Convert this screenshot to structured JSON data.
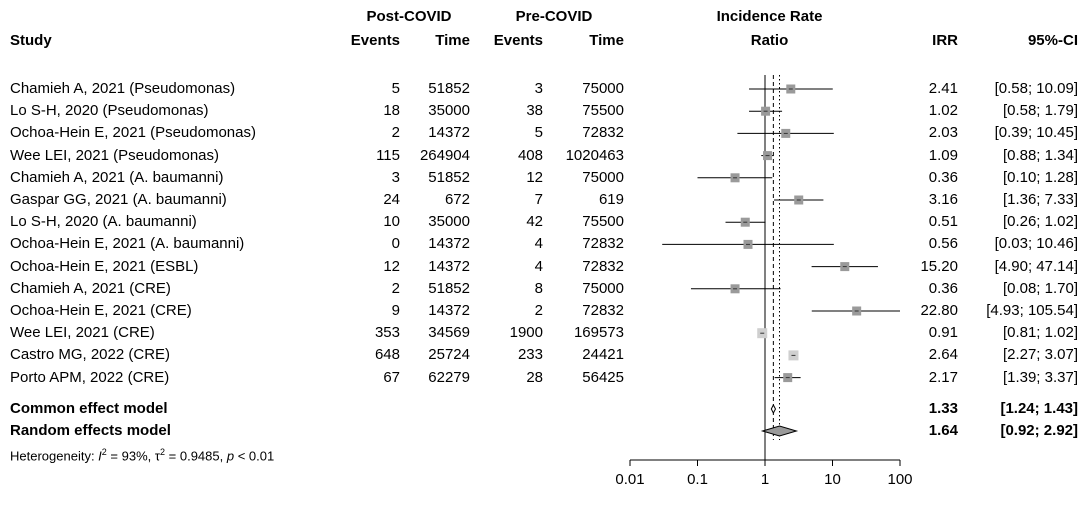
{
  "header": {
    "study": "Study",
    "post_group": "Post-COVID",
    "pre_group": "Pre-COVID",
    "events": "Events",
    "time": "Time",
    "irr_title_1": "Incidence Rate",
    "irr_title_2": "Ratio",
    "irr": "IRR",
    "ci": "95%-CI"
  },
  "studies": [
    {
      "study": "Chamieh A, 2021 (Pseudomonas)",
      "post_events": "5",
      "post_time": "51852",
      "pre_events": "3",
      "pre_time": "75000",
      "irr": "2.41",
      "ci": "[0.58; 10.09]"
    },
    {
      "study": "Lo S-H, 2020 (Pseudomonas)",
      "post_events": "18",
      "post_time": "35000",
      "pre_events": "38",
      "pre_time": "75500",
      "irr": "1.02",
      "ci": "[0.58; 1.79]"
    },
    {
      "study": "Ochoa-Hein E, 2021 (Pseudomonas)",
      "post_events": "2",
      "post_time": "14372",
      "pre_events": "5",
      "pre_time": "72832",
      "irr": "2.03",
      "ci": "[0.39; 10.45]"
    },
    {
      "study": "Wee LEI, 2021 (Pseudomonas)",
      "post_events": "115",
      "post_time": "264904",
      "pre_events": "408",
      "pre_time": "1020463",
      "irr": "1.09",
      "ci": "[0.88; 1.34]"
    },
    {
      "study": "Chamieh A, 2021 (A. baumanni)",
      "post_events": "3",
      "post_time": "51852",
      "pre_events": "12",
      "pre_time": "75000",
      "irr": "0.36",
      "ci": "[0.10; 1.28]"
    },
    {
      "study": "Gaspar GG, 2021 (A. baumanni)",
      "post_events": "24",
      "post_time": "672",
      "pre_events": "7",
      "pre_time": "619",
      "irr": "3.16",
      "ci": "[1.36; 7.33]"
    },
    {
      "study": "Lo S-H, 2020 (A. baumanni)",
      "post_events": "10",
      "post_time": "35000",
      "pre_events": "42",
      "pre_time": "75500",
      "irr": "0.51",
      "ci": "[0.26; 1.02]"
    },
    {
      "study": "Ochoa-Hein E, 2021 (A. baumanni)",
      "post_events": "0",
      "post_time": "14372",
      "pre_events": "4",
      "pre_time": "72832",
      "irr": "0.56",
      "ci": "[0.03; 10.46]"
    },
    {
      "study": "Ochoa-Hein E, 2021 (ESBL)",
      "post_events": "12",
      "post_time": "14372",
      "pre_events": "4",
      "pre_time": "72832",
      "irr": "15.20",
      "ci": "[4.90; 47.14]"
    },
    {
      "study": "Chamieh A, 2021 (CRE)",
      "post_events": "2",
      "post_time": "51852",
      "pre_events": "8",
      "pre_time": "75000",
      "irr": "0.36",
      "ci": "[0.08; 1.70]"
    },
    {
      "study": "Ochoa-Hein E, 2021 (CRE)",
      "post_events": "9",
      "post_time": "14372",
      "pre_events": "2",
      "pre_time": "72832",
      "irr": "22.80",
      "ci": "[4.93; 105.54]"
    },
    {
      "study": "Wee LEI, 2021 (CRE)",
      "post_events": "353",
      "post_time": "34569",
      "pre_events": "1900",
      "pre_time": "169573",
      "irr": "0.91",
      "ci": "[0.81; 1.02]"
    },
    {
      "study": "Castro MG, 2022 (CRE)",
      "post_events": "648",
      "post_time": "25724",
      "pre_events": "233",
      "pre_time": "24421",
      "irr": "2.64",
      "ci": "[2.27; 3.07]"
    },
    {
      "study": "Porto APM, 2022 (CRE)",
      "post_events": "67",
      "post_time": "62279",
      "pre_events": "28",
      "pre_time": "56425",
      "irr": "2.17",
      "ci": "[1.39; 3.37]"
    }
  ],
  "models": {
    "common": {
      "label": "Common effect model",
      "irr": "1.33",
      "ci": "[1.24; 1.43]"
    },
    "random": {
      "label": "Random effects model",
      "irr": "1.64",
      "ci": "[0.92; 2.92]"
    }
  },
  "heterogeneity": {
    "prefix": "Heterogeneity: ",
    "i2_symbol": "I",
    "i2_value": " = 93%, ",
    "tau2_symbol": "τ",
    "tau2_value": " = 0.9485, ",
    "p_symbol": "p",
    "p_value": " < 0.01"
  },
  "chart_data": {
    "type": "forest",
    "scale": "log",
    "xlim": [
      0.01,
      100
    ],
    "ticks": [
      0.01,
      0.1,
      1,
      10,
      100
    ],
    "tick_labels": [
      "0.01",
      "0.1",
      "1",
      "10",
      "100"
    ],
    "null_line": 1,
    "points": [
      {
        "irr": 2.41,
        "lower": 0.58,
        "upper": 10.09
      },
      {
        "irr": 1.02,
        "lower": 0.58,
        "upper": 1.79
      },
      {
        "irr": 2.03,
        "lower": 0.39,
        "upper": 10.45
      },
      {
        "irr": 1.09,
        "lower": 0.88,
        "upper": 1.34
      },
      {
        "irr": 0.36,
        "lower": 0.1,
        "upper": 1.28
      },
      {
        "irr": 3.16,
        "lower": 1.36,
        "upper": 7.33
      },
      {
        "irr": 0.51,
        "lower": 0.26,
        "upper": 1.02
      },
      {
        "irr": 0.56,
        "lower": 0.03,
        "upper": 10.46
      },
      {
        "irr": 15.2,
        "lower": 4.9,
        "upper": 47.14
      },
      {
        "irr": 0.36,
        "lower": 0.08,
        "upper": 1.7
      },
      {
        "irr": 22.8,
        "lower": 4.93,
        "upper": 105.54
      },
      {
        "irr": 0.91,
        "lower": 0.81,
        "upper": 1.02
      },
      {
        "irr": 2.64,
        "lower": 2.27,
        "upper": 3.07
      },
      {
        "irr": 2.17,
        "lower": 1.39,
        "upper": 3.37
      }
    ],
    "common_effect": {
      "irr": 1.33,
      "lower": 1.24,
      "upper": 1.43
    },
    "random_effects": {
      "irr": 1.64,
      "lower": 0.92,
      "upper": 2.92
    },
    "colors": {
      "square": "#9a9a9a",
      "square_light": "#cfcfcf",
      "line": "#000000",
      "diamond_fill": "#9a9a9a"
    }
  }
}
